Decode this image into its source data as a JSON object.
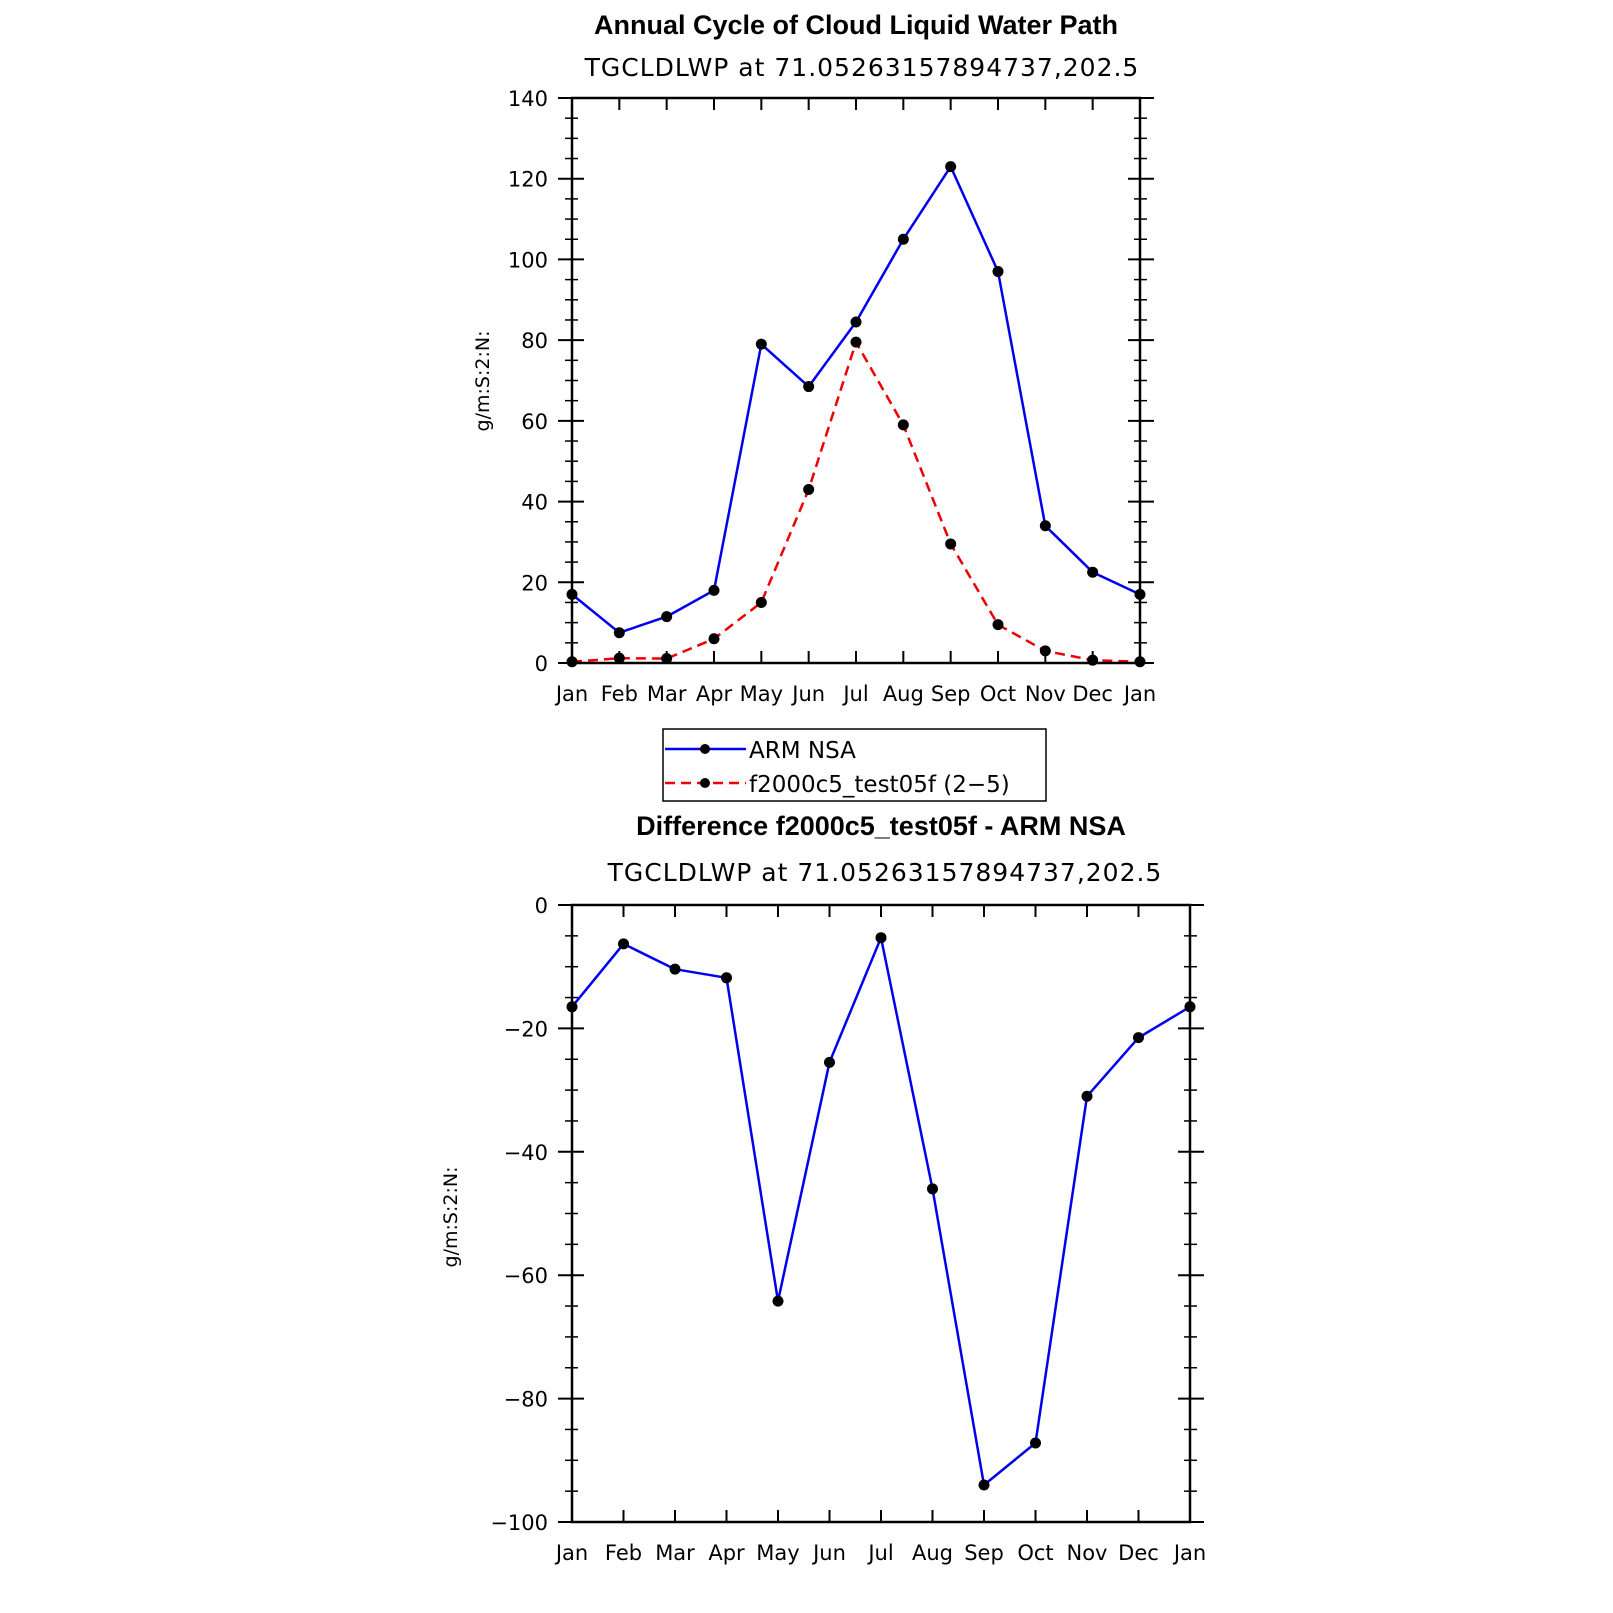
{
  "chart_data": [
    {
      "type": "line",
      "title": "Annual Cycle of Cloud Liquid Water Path",
      "subtitle": "TGCLDLWP at 71.05263157894737,202.5",
      "ylabel": "g/m:S:2:N:",
      "xlabel": "",
      "categories": [
        "Jan",
        "Feb",
        "Mar",
        "Apr",
        "May",
        "Jun",
        "Jul",
        "Aug",
        "Sep",
        "Oct",
        "Nov",
        "Dec",
        "Jan"
      ],
      "ylim": [
        0,
        140
      ],
      "yticks": [
        0,
        20,
        40,
        60,
        80,
        100,
        120,
        140
      ],
      "ytick_labels": [
        "0",
        "20",
        "40",
        "60",
        "80",
        "100",
        "120",
        "140"
      ],
      "series": [
        {
          "name": "ARM NSA",
          "color": "#0000ee",
          "dash": "solid",
          "values": [
            17,
            7.5,
            11.5,
            18,
            79,
            68.5,
            84.5,
            105,
            123,
            97,
            34,
            22.5,
            17
          ]
        },
        {
          "name": "f2000c5_test05f (2-5)",
          "color": "#ee0000",
          "dash": "dashed",
          "values": [
            0.3,
            1.2,
            1.1,
            6,
            15,
            43,
            79.5,
            59,
            29.5,
            9.5,
            3,
            0.7,
            0.3
          ]
        }
      ],
      "legend": {
        "position": "below",
        "entries": [
          "ARM NSA",
          "f2000c5_test05f (2−5)"
        ]
      }
    },
    {
      "type": "line",
      "title": "Difference f2000c5_test05f - ARM NSA",
      "subtitle": "TGCLDLWP at 71.05263157894737,202.5",
      "ylabel": "g/m:S:2:N:",
      "xlabel": "",
      "categories": [
        "Jan",
        "Feb",
        "Mar",
        "Apr",
        "May",
        "Jun",
        "Jul",
        "Aug",
        "Sep",
        "Oct",
        "Nov",
        "Dec",
        "Jan"
      ],
      "ylim": [
        -100,
        0
      ],
      "yticks": [
        0,
        -20,
        -40,
        -60,
        -80,
        -100
      ],
      "ytick_labels": [
        "0",
        "−20",
        "−40",
        "−60",
        "−80",
        "−100"
      ],
      "series": [
        {
          "color": "#0000ee",
          "dash": "solid",
          "values": [
            -16.5,
            -6.3,
            -10.4,
            -11.8,
            -64.2,
            -25.5,
            -5.3,
            -46,
            -94,
            -87.2,
            -31,
            -21.5,
            -16.5
          ]
        }
      ]
    }
  ]
}
